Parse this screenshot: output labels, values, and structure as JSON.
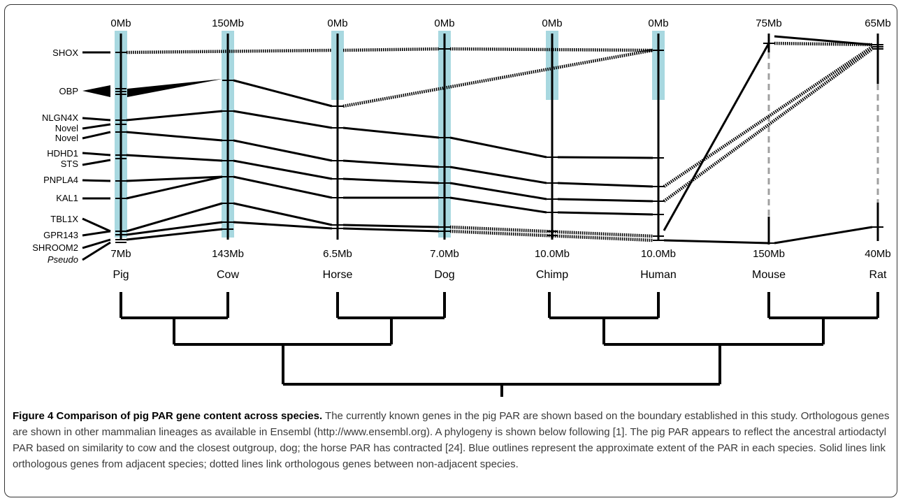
{
  "species": [
    {
      "name": "Pig",
      "top": "0Mb",
      "bottom": "7Mb"
    },
    {
      "name": "Cow",
      "top": "150Mb",
      "bottom": "143Mb"
    },
    {
      "name": "Horse",
      "top": "0Mb",
      "bottom": "6.5Mb"
    },
    {
      "name": "Dog",
      "top": "0Mb",
      "bottom": "7.0Mb"
    },
    {
      "name": "Chimp",
      "top": "0Mb",
      "bottom": "10.0Mb"
    },
    {
      "name": "Human",
      "top": "0Mb",
      "bottom": "10.0Mb"
    },
    {
      "name": "Mouse",
      "top": "75Mb",
      "bottom": "150Mb"
    },
    {
      "name": "Rat",
      "top": "65Mb",
      "bottom": "40Mb"
    }
  ],
  "genes": [
    "SHOX",
    "OBP",
    "NLGN4X",
    "Novel",
    "Novel",
    "HDHD1",
    "STS",
    "PNPLA4",
    "KAL1",
    "TBL1X",
    "GPR143",
    "SHROOM2",
    "Pseudo"
  ],
  "caption": {
    "lead": "Figure 4 Comparison of pig PAR gene content across species.",
    "body": " The currently known genes in the pig PAR are shown based on the boundary established in this study. Orthologous genes are shown in other mammalian lineages as available in Ensembl (http://www.ensembl.org). A phylogeny is shown below following [1]. The pig PAR appears to reflect the ancestral artiodactyl PAR based on similarity to cow and the closest outgroup, dog; the horse PAR has contracted [24]. Blue outlines represent the approximate extent of the PAR in each species. Solid lines link orthologous genes from adjacent species; dotted lines link orthologous genes between non-adjacent species."
  },
  "colors": {
    "par_box": "#a8d8e0",
    "line": "#000000",
    "dashed": "#a0a0a0"
  }
}
